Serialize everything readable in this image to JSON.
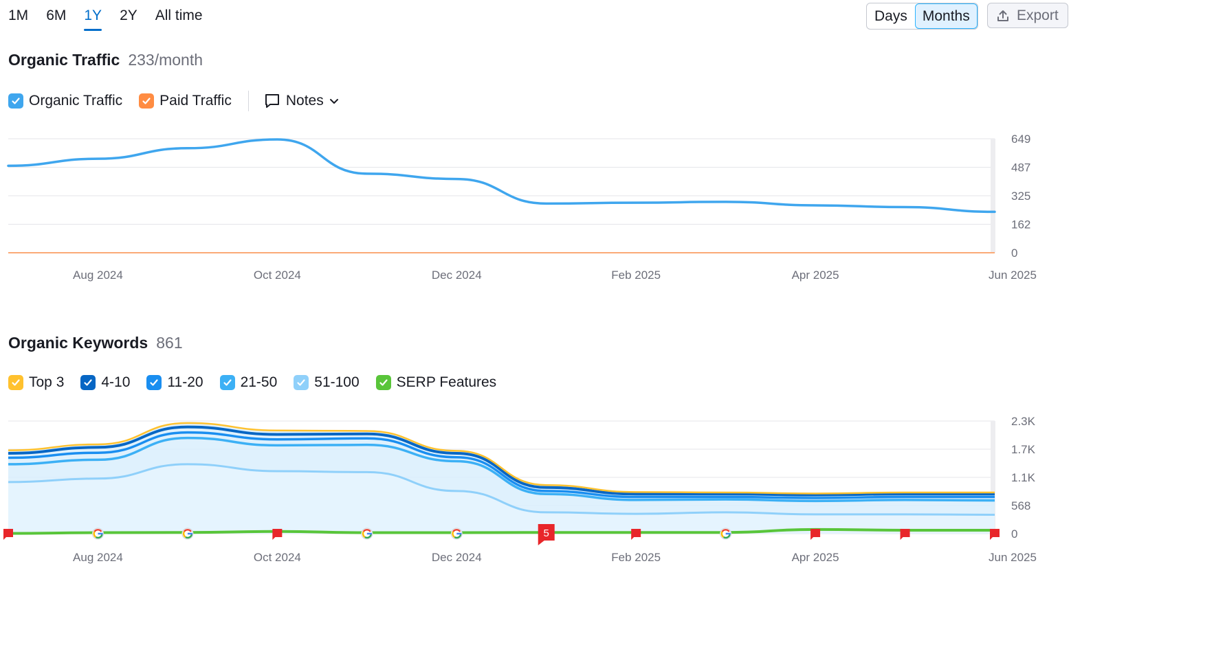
{
  "range_tabs": [
    "1M",
    "6M",
    "1Y",
    "2Y",
    "All time"
  ],
  "active_range": "1Y",
  "granularity": {
    "days": "Days",
    "months": "Months",
    "active": "Months"
  },
  "export_label": "Export",
  "traffic": {
    "title": "Organic Traffic",
    "value": "233/month",
    "legend": {
      "organic": "Organic Traffic",
      "paid": "Paid Traffic",
      "notes": "Notes"
    }
  },
  "keywords": {
    "title": "Organic Keywords",
    "value": "861",
    "legend": [
      "Top 3",
      "4-10",
      "11-20",
      "21-50",
      "51-100",
      "SERP Features"
    ]
  },
  "colors": {
    "organic": "#3fa6ee",
    "paid": "#ff8c42",
    "top3": "#ffc12e",
    "k4_10": "#0766c4",
    "k11_20": "#1a8ef0",
    "k21_50": "#3cb0f5",
    "k51_100": "#8fd0fa",
    "serp": "#59c53a",
    "flag": "#e8262a"
  },
  "chart_data": [
    {
      "type": "line",
      "title": "Organic Traffic",
      "x": [
        "Jul 2024",
        "Aug 2024",
        "Sep 2024",
        "Oct 2024",
        "Nov 2024",
        "Dec 2024",
        "Jan 2025",
        "Feb 2025",
        "Mar 2025",
        "Apr 2025",
        "May 2025",
        "Jun 2025"
      ],
      "x_ticks": [
        "Aug 2024",
        "Oct 2024",
        "Dec 2024",
        "Feb 2025",
        "Apr 2025",
        "Jun 2025"
      ],
      "y_ticks": [
        "0",
        "162",
        "325",
        "487",
        "649"
      ],
      "ylim": [
        0,
        649
      ],
      "series": [
        {
          "name": "Organic Traffic",
          "values": [
            495,
            535,
            595,
            645,
            450,
            420,
            280,
            285,
            290,
            270,
            260,
            233
          ]
        },
        {
          "name": "Paid Traffic",
          "values": [
            0,
            0,
            0,
            0,
            0,
            0,
            0,
            0,
            0,
            0,
            0,
            0
          ]
        }
      ]
    },
    {
      "type": "area",
      "title": "Organic Keywords",
      "x": [
        "Jul 2024",
        "Aug 2024",
        "Sep 2024",
        "Oct 2024",
        "Nov 2024",
        "Dec 2024",
        "Jan 2025",
        "Feb 2025",
        "Mar 2025",
        "Apr 2025",
        "May 2025",
        "Jun 2025"
      ],
      "x_ticks": [
        "Aug 2024",
        "Oct 2024",
        "Dec 2024",
        "Feb 2025",
        "Apr 2025",
        "Jun 2025"
      ],
      "y_ticks": [
        "0",
        "568",
        "1.1K",
        "1.7K",
        "2.3K"
      ],
      "ylim": [
        0,
        2270
      ],
      "stacked_cumulative": true,
      "series": [
        {
          "name": "51-100",
          "values": [
            1040,
            1110,
            1400,
            1260,
            1240,
            860,
            430,
            400,
            430,
            390,
            390,
            380
          ]
        },
        {
          "name": "21-50",
          "values": [
            1400,
            1490,
            1930,
            1780,
            1790,
            1460,
            800,
            680,
            690,
            660,
            680,
            670
          ]
        },
        {
          "name": "11-20",
          "values": [
            1530,
            1630,
            2040,
            1900,
            1920,
            1540,
            860,
            740,
            740,
            720,
            740,
            740
          ]
        },
        {
          "name": "4-10",
          "values": [
            1620,
            1740,
            2150,
            2000,
            2010,
            1620,
            930,
            800,
            800,
            780,
            800,
            800
          ]
        },
        {
          "name": "Top 3",
          "values": [
            1680,
            1800,
            2230,
            2080,
            2070,
            1670,
            980,
            840,
            830,
            810,
            830,
            830
          ]
        },
        {
          "name": "SERP Features",
          "values": [
            5,
            20,
            25,
            45,
            20,
            20,
            25,
            25,
            25,
            85,
            70,
            70
          ]
        }
      ],
      "markers": [
        {
          "type": "flag",
          "x": "Jul 2024"
        },
        {
          "type": "google",
          "x": "Aug 2024"
        },
        {
          "type": "google",
          "x": "Sep 2024"
        },
        {
          "type": "flag",
          "x": "Oct 2024"
        },
        {
          "type": "google",
          "x": "Nov 2024"
        },
        {
          "type": "google",
          "x": "Dec 2024"
        },
        {
          "type": "flag",
          "x": "Jan 2025",
          "label": "5"
        },
        {
          "type": "flag",
          "x": "Feb 2025"
        },
        {
          "type": "google",
          "x": "Mar 2025"
        },
        {
          "type": "flag",
          "x": "Apr 2025"
        },
        {
          "type": "flag",
          "x": "May 2025"
        },
        {
          "type": "flag",
          "x": "Jun 2025"
        }
      ]
    }
  ]
}
